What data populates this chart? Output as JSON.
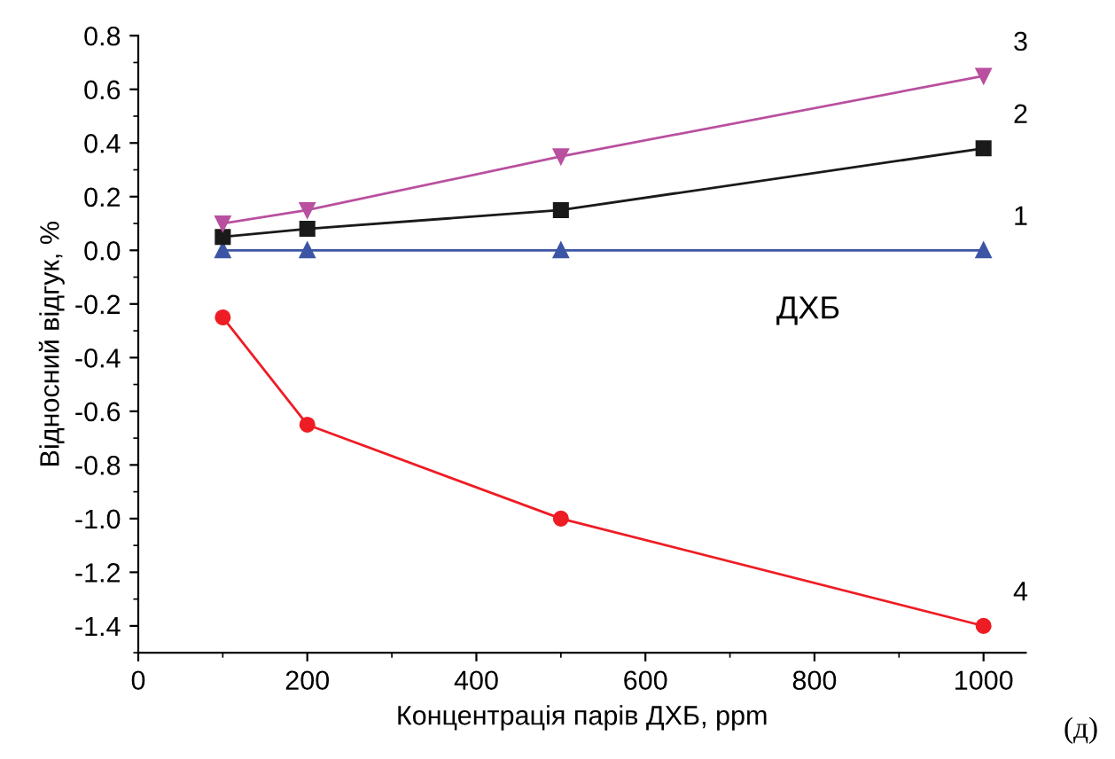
{
  "chart_data": {
    "type": "line",
    "xlabel": "Концентрація парів ДХБ, ppm",
    "ylabel": "Відносний відгук, %",
    "x": [
      100,
      200,
      500,
      1000
    ],
    "series": [
      {
        "name": "1",
        "color": "#3c55a5",
        "marker": "triangle",
        "values": [
          0,
          0,
          0,
          0
        ]
      },
      {
        "name": "2",
        "color": "#1a1a1a",
        "marker": "square",
        "values": [
          0.05,
          0.08,
          0.15,
          0.38
        ]
      },
      {
        "name": "3",
        "color": "#b9509f",
        "marker": "triangle_down",
        "values": [
          0.1,
          0.15,
          0.35,
          0.65
        ]
      },
      {
        "name": "4",
        "color": "#ee1c24",
        "marker": "circle",
        "values": [
          -0.25,
          -0.65,
          -1.0,
          -1.4
        ]
      }
    ],
    "xlim": [
      0,
      1050
    ],
    "xticks": [
      0,
      200,
      400,
      600,
      800,
      1000
    ],
    "ylim": [
      -1.5,
      0.8
    ],
    "yticks": [
      {
        "value": -1.4,
        "label": "-1.4"
      },
      {
        "value": -1.2,
        "label": "-1.2"
      },
      {
        "value": -1.0,
        "label": "-1.0"
      },
      {
        "value": -0.8,
        "label": "-0.8"
      },
      {
        "value": -0.6,
        "label": "-0.6"
      },
      {
        "value": -0.4,
        "label": "-0.4"
      },
      {
        "value": -0.2,
        "label": "-0.2"
      },
      {
        "value": 0,
        "label": "0.0"
      },
      {
        "value": 0.2,
        "label": "0.2"
      },
      {
        "value": 0.4,
        "label": "0.4"
      },
      {
        "value": 0.6,
        "label": "0.6"
      },
      {
        "value": 0.8,
        "label": "0.8"
      }
    ],
    "grid": false,
    "legend": false,
    "annotations": [
      "ДХБ",
      "(д)"
    ]
  }
}
